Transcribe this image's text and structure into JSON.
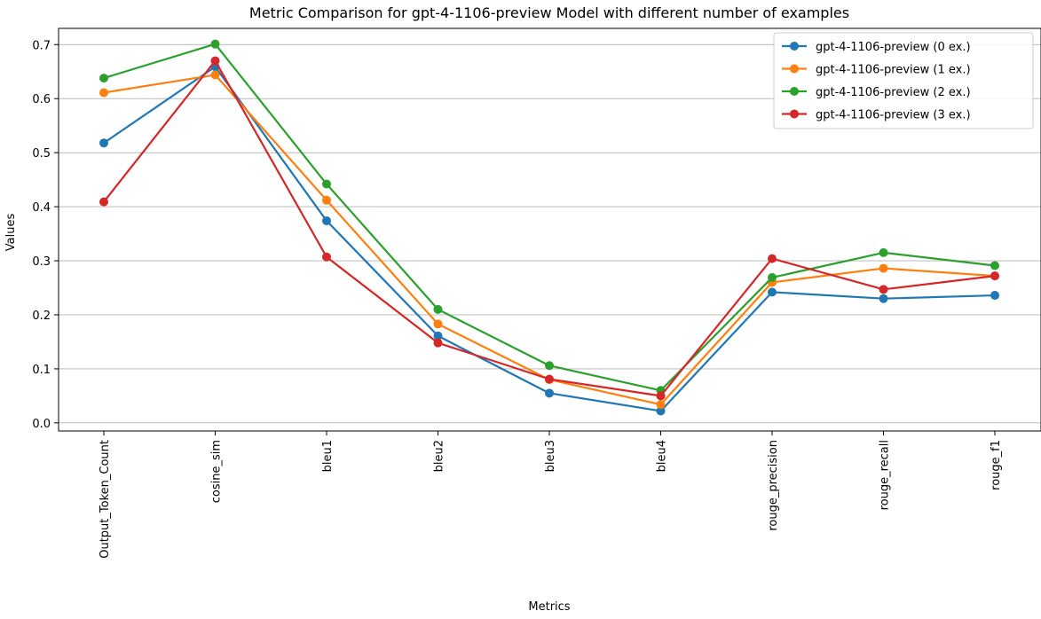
{
  "chart_data": {
    "type": "line",
    "title": "Metric Comparison for gpt-4-1106-preview Model with different number of examples",
    "xlabel": "Metrics",
    "ylabel": "Values",
    "categories": [
      "Output_Token_Count",
      "cosine_sim",
      "bleu1",
      "bleu2",
      "bleu3",
      "bleu4",
      "rouge_precision",
      "rouge_recall",
      "rouge_f1"
    ],
    "ylim": [
      -0.015,
      0.73
    ],
    "yticks": [
      0.0,
      0.1,
      0.2,
      0.3,
      0.4,
      0.5,
      0.6,
      0.7
    ],
    "grid": "horizontal",
    "legend_position": "top-right",
    "series": [
      {
        "name": "gpt-4-1106-preview (0 ex.)",
        "color": "#1f77b4",
        "values": [
          0.518,
          0.659,
          0.374,
          0.161,
          0.055,
          0.022,
          0.242,
          0.23,
          0.236
        ]
      },
      {
        "name": "gpt-4-1106-preview (1 ex.)",
        "color": "#ff7f0e",
        "values": [
          0.611,
          0.644,
          0.412,
          0.183,
          0.08,
          0.034,
          0.26,
          0.286,
          0.272
        ]
      },
      {
        "name": "gpt-4-1106-preview (2 ex.)",
        "color": "#2ca02c",
        "values": [
          0.638,
          0.701,
          0.442,
          0.21,
          0.106,
          0.06,
          0.269,
          0.315,
          0.291
        ]
      },
      {
        "name": "gpt-4-1106-preview (3 ex.)",
        "color": "#d62728",
        "values": [
          0.409,
          0.67,
          0.307,
          0.148,
          0.081,
          0.05,
          0.304,
          0.247,
          0.272
        ]
      }
    ]
  }
}
